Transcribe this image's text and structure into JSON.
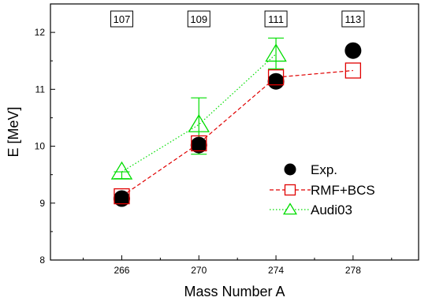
{
  "chart_data": {
    "type": "scatter",
    "xlabel": "Mass Number A",
    "ylabel": "E [MeV]",
    "xlim": [
      262.3,
      281.4
    ],
    "ylim": [
      8,
      12.5
    ],
    "x_ticks": [
      266,
      270,
      274,
      278
    ],
    "y_ticks": [
      8,
      9,
      10,
      11,
      12
    ],
    "grid": false,
    "legend_position": "bottom-right",
    "atomic_number_labels": [
      {
        "x": 266,
        "label": "107"
      },
      {
        "x": 270,
        "label": "109"
      },
      {
        "x": 274,
        "label": "111"
      },
      {
        "x": 278,
        "label": "113"
      }
    ],
    "series": [
      {
        "name": "Exp.",
        "marker": "filled-circle",
        "line": "none",
        "color": "#000000",
        "x": [
          266,
          270,
          274,
          278
        ],
        "y": [
          9.08,
          10.02,
          11.14,
          11.68
        ]
      },
      {
        "name": "RMF+BCS",
        "marker": "open-square",
        "line": "dashed",
        "color": "#e00000",
        "x": [
          266,
          270,
          274,
          278
        ],
        "y": [
          9.12,
          10.05,
          11.21,
          11.33
        ]
      },
      {
        "name": "Audi03",
        "marker": "open-triangle",
        "line": "dotted",
        "color": "#00dd00",
        "x": [
          266,
          270,
          274
        ],
        "y": [
          9.55,
          10.38,
          11.62
        ],
        "y_err_low": [
          9.43,
          9.86,
          11.36
        ],
        "y_err_high": [
          9.55,
          10.85,
          11.9
        ]
      }
    ]
  }
}
